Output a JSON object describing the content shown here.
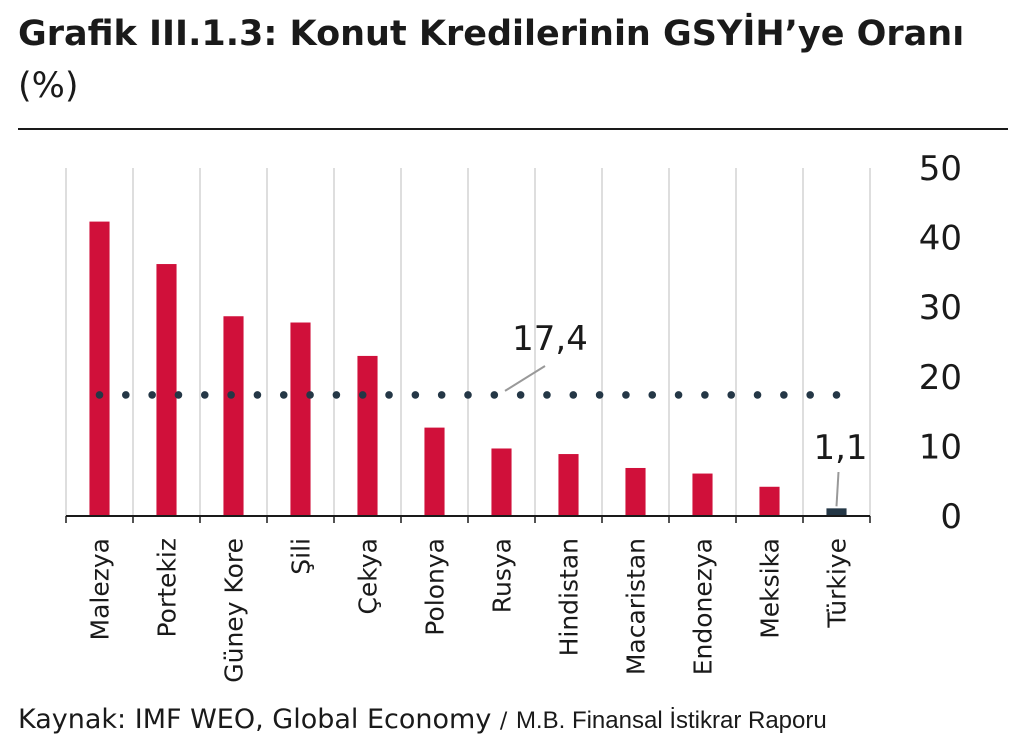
{
  "title": {
    "main": "Grafik III.1.3: Konut Kredilerinin GSYİH’ye Oranı",
    "unit": "(%)"
  },
  "source": {
    "text": "Kaynak: IMF WEO, Global Economy",
    "separator": "/",
    "org": "M.B. Finansal İstikrar Raporu"
  },
  "colors": {
    "bar": "#d0103a",
    "highlight": "#243746",
    "grid": "#d4d4d4",
    "axis": "#1a1a1a",
    "average_line": "#243746"
  },
  "chart_data": {
    "type": "bar",
    "categories": [
      "Malezya",
      "Portekiz",
      "Güney Kore",
      "Şili",
      "Çekya",
      "Polonya",
      "Rusya",
      "Hindistan",
      "Macaristan",
      "Endonezya",
      "Meksika",
      "Türkiye"
    ],
    "values": [
      42.3,
      36.2,
      28.7,
      27.8,
      23.0,
      12.7,
      9.7,
      8.9,
      6.9,
      6.1,
      4.2,
      1.1
    ],
    "ylim": [
      0,
      50
    ],
    "yticks": [
      "0",
      "10",
      "20",
      "30",
      "40",
      "50"
    ],
    "y_axis_side": "right",
    "grid": "vertical",
    "highlight_category": "Türkiye",
    "average": 17.4,
    "annotations": [
      {
        "text": "17,4",
        "target": "average"
      },
      {
        "text": "1,1",
        "target": "Türkiye"
      }
    ]
  }
}
